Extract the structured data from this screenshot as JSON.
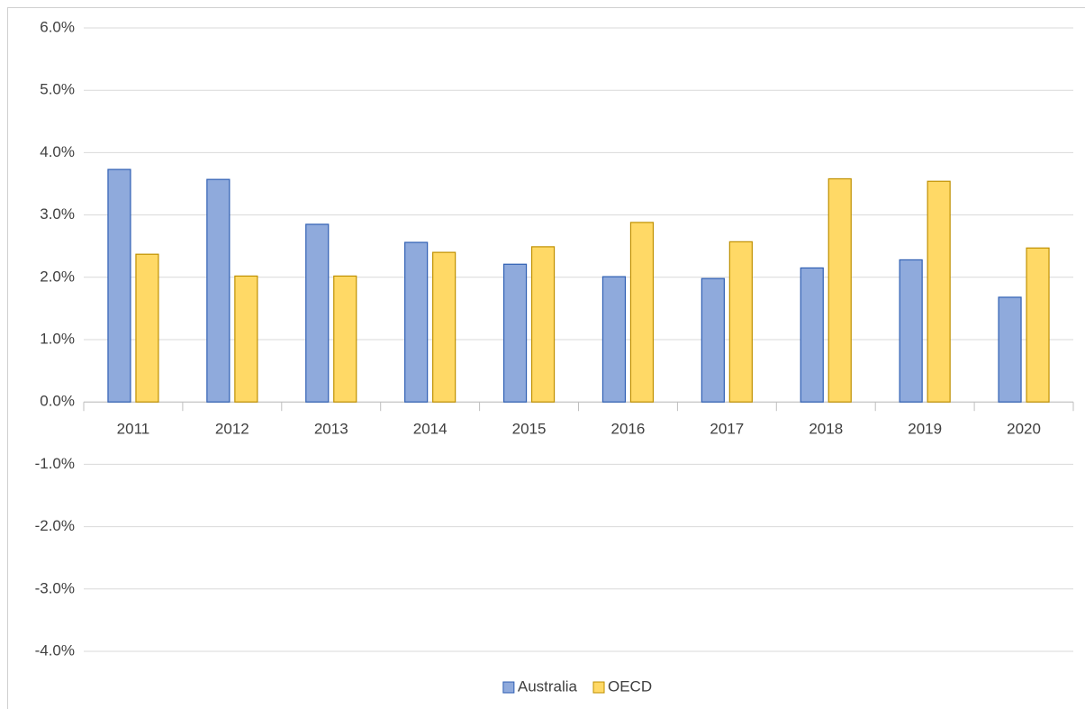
{
  "chart_data": {
    "type": "bar",
    "categories": [
      "2011",
      "2012",
      "2013",
      "2014",
      "2015",
      "2016",
      "2017",
      "2018",
      "2019",
      "2020"
    ],
    "series": [
      {
        "name": "Australia",
        "color": "#8faadc",
        "edgecolor": "#2f5fb3",
        "values": [
          3.73,
          3.57,
          2.85,
          2.56,
          2.21,
          2.01,
          1.98,
          2.15,
          2.28,
          1.68
        ]
      },
      {
        "name": "OECD",
        "color": "#ffd966",
        "edgecolor": "#bf9000",
        "values": [
          2.37,
          2.02,
          2.02,
          2.4,
          2.49,
          2.88,
          2.57,
          3.58,
          3.54,
          2.47
        ]
      }
    ],
    "ylim": [
      -4,
      6
    ],
    "yticks": [
      {
        "value": -4,
        "label": "-4.0%"
      },
      {
        "value": -3,
        "label": "-3.0%"
      },
      {
        "value": -2,
        "label": "-2.0%"
      },
      {
        "value": -1,
        "label": "-1.0%"
      },
      {
        "value": 0,
        "label": "0.0%"
      },
      {
        "value": 1,
        "label": "1.0%"
      },
      {
        "value": 2,
        "label": "2.0%"
      },
      {
        "value": 3,
        "label": "3.0%"
      },
      {
        "value": 4,
        "label": "4.0%"
      },
      {
        "value": 5,
        "label": "5.0%"
      },
      {
        "value": 6,
        "label": "6.0%"
      }
    ],
    "grid": true,
    "legend": "bottom"
  }
}
